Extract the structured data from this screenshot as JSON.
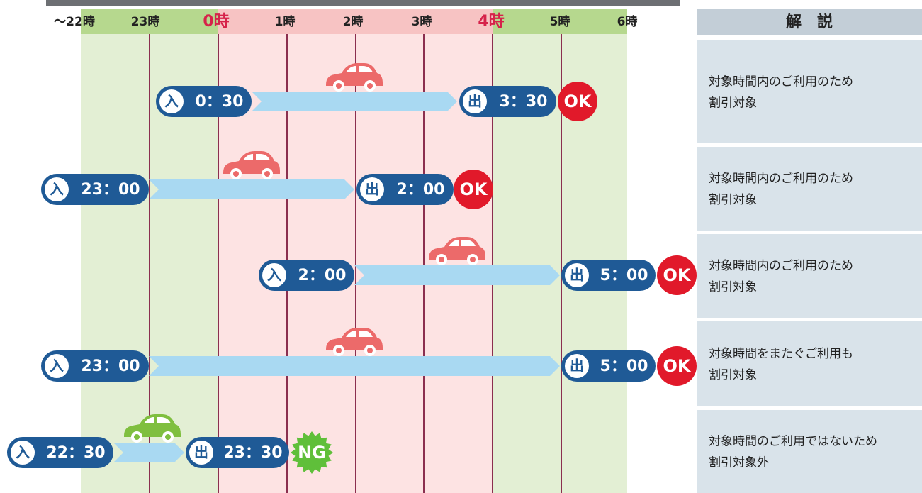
{
  "header": {
    "hours": [
      "～22時",
      "23時",
      "0時",
      "1時",
      "2時",
      "3時",
      "4時",
      "5時",
      "6時"
    ],
    "explanation_title": "解　説"
  },
  "rows": [
    {
      "entry_label": "入",
      "entry_time": "0：30",
      "exit_label": "出",
      "exit_time": "3：30",
      "result": "OK",
      "description": [
        "対象時間内のご利用のため",
        "割引対象"
      ]
    },
    {
      "entry_label": "入",
      "entry_time": "23：00",
      "exit_label": "出",
      "exit_time": "2：00",
      "result": "OK",
      "description": [
        "対象時間内のご利用のため",
        "割引対象"
      ]
    },
    {
      "entry_label": "入",
      "entry_time": "2：00",
      "exit_label": "出",
      "exit_time": "5：00",
      "result": "OK",
      "description": [
        "対象時間内のご利用のため",
        "割引対象"
      ]
    },
    {
      "entry_label": "入",
      "entry_time": "23：00",
      "exit_label": "出",
      "exit_time": "5：00",
      "result": "OK",
      "description": [
        "対象時間をまたぐご利用も",
        "割引対象"
      ]
    },
    {
      "entry_label": "入",
      "entry_time": "22：30",
      "exit_label": "出",
      "exit_time": "23：30",
      "result": "NG",
      "description": [
        "対象時間のご利用ではないため",
        "割引対象外"
      ]
    }
  ]
}
